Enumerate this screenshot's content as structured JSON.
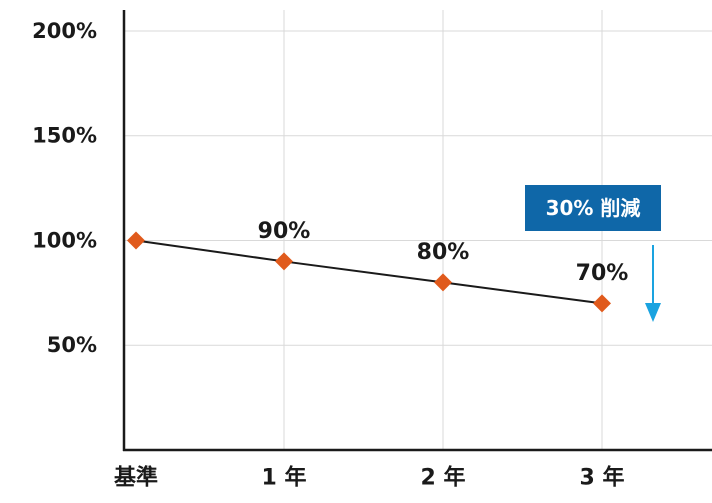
{
  "chart_data": {
    "type": "line",
    "categories": [
      "基準",
      "1 年",
      "2 年",
      "3 年"
    ],
    "values": [
      100,
      90,
      80,
      70
    ],
    "data_labels": [
      "",
      "90%",
      "80%",
      "70%"
    ],
    "y_ticks": [
      {
        "value": 50,
        "label": "50%"
      },
      {
        "value": 100,
        "label": "100%"
      },
      {
        "value": 150,
        "label": "150%"
      },
      {
        "value": 200,
        "label": "200%"
      }
    ],
    "ylim": [
      0,
      210
    ],
    "grid": true,
    "colors": {
      "line": "#1a1a1a",
      "marker": "#e05a1c",
      "grid": "#d9d9d9",
      "axis": "#1a1a1a",
      "callout_bg": "#0f67a8",
      "arrow": "#1aa3e0"
    },
    "annotation": {
      "text": "30% 削減",
      "arrow_direction": "down"
    }
  }
}
